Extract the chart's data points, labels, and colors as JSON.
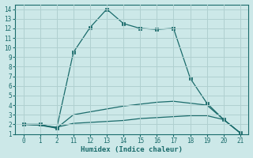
{
  "xlabel": "Humidex (Indice chaleur)",
  "background_color": "#cce8e8",
  "grid_color": "#b0d0d0",
  "line_color": "#1a6b6b",
  "xlabels": [
    "0",
    "1",
    "2",
    "11",
    "12",
    "13",
    "14",
    "15",
    "16",
    "17",
    "18",
    "19",
    "20",
    "21"
  ],
  "ylim": [
    1,
    14.5
  ],
  "yticks": [
    1,
    2,
    3,
    4,
    5,
    6,
    7,
    8,
    9,
    10,
    11,
    12,
    13,
    14
  ],
  "series1_y": [
    2.0,
    2.0,
    1.6,
    9.5,
    12.1,
    14.0,
    12.5,
    12.0,
    11.9,
    12.0,
    6.8,
    4.2,
    2.5,
    1.1
  ],
  "series2_y": [
    2.0,
    1.9,
    1.6,
    3.0,
    3.3,
    3.6,
    3.9,
    4.1,
    4.3,
    4.4,
    4.2,
    4.0,
    2.5,
    1.1
  ],
  "series3_y": [
    2.0,
    1.9,
    1.7,
    2.1,
    2.2,
    2.3,
    2.4,
    2.6,
    2.7,
    2.8,
    2.9,
    2.9,
    2.5,
    1.1
  ]
}
